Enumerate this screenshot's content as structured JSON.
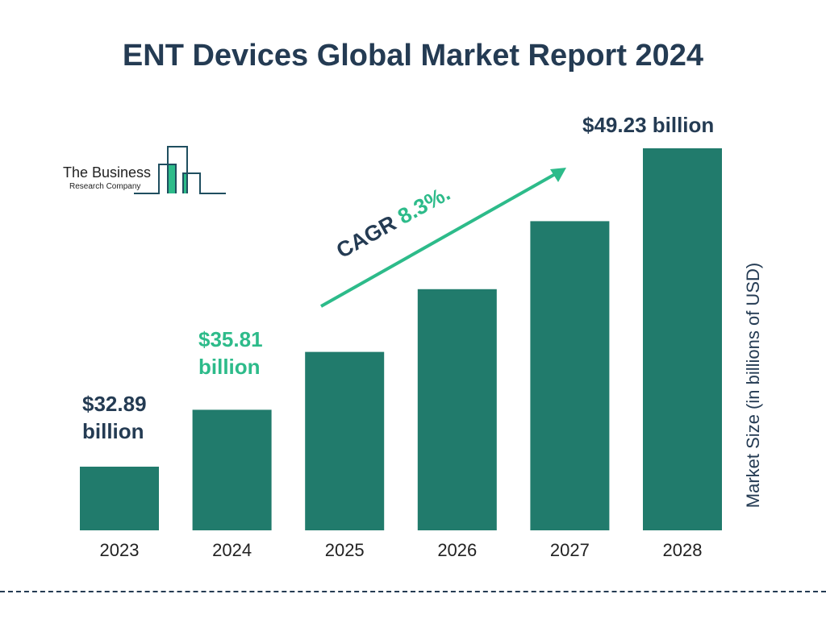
{
  "chart_data": {
    "type": "bar",
    "title": "ENT Devices Global Market Report 2024",
    "categories": [
      "2023",
      "2024",
      "2025",
      "2026",
      "2027",
      "2028"
    ],
    "values": [
      32.89,
      35.81,
      38.78,
      42.0,
      45.49,
      49.23
    ],
    "ylabel": "Market Size (in billions of USD)",
    "xlabel": "",
    "data_labels": {
      "2023": [
        "$32.89",
        "billion"
      ],
      "2024": [
        "$35.81",
        "billion"
      ],
      "2028": "$49.23 billion"
    },
    "annotation": {
      "prefix": "CAGR",
      "value": "8.3%."
    },
    "grid": false,
    "colors": {
      "bar": "#217b6c",
      "accent": "#2dbb8a",
      "text": "#243b53"
    }
  },
  "logo": {
    "line1": "The Business",
    "line2": "Research Company"
  }
}
